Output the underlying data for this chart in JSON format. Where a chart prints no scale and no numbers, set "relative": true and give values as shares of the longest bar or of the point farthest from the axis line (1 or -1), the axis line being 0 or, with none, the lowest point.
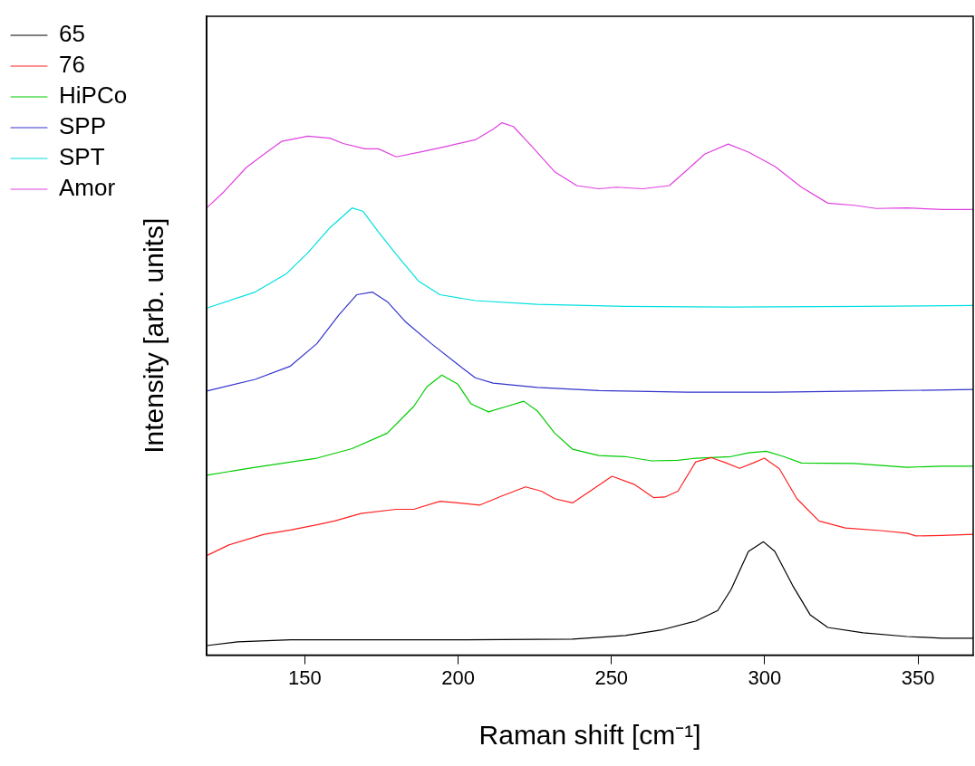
{
  "chart_data": {
    "type": "line",
    "xlabel": "Raman shift [cm⁻¹]",
    "ylabel": "Intensity [arb. units]",
    "relative": true,
    "xlim": [
      118,
      368
    ],
    "xticks": [
      150,
      200,
      250,
      300,
      350
    ],
    "grid": false,
    "legend": "top left",
    "marker": "none",
    "line_style": "solid",
    "series": [
      {
        "name": "65",
        "color": "#000000",
        "x": [
          118,
          128.1,
          145.3,
          202.8,
          237.3,
          254.5,
          266,
          277.5,
          284.7,
          289,
          294.7,
          299.6,
          303.3,
          309.1,
          314.8,
          320.6,
          332.1,
          346.4,
          357.9,
          368
        ],
        "values": [
          0.018,
          0.025,
          0.029,
          0.029,
          0.03,
          0.037,
          0.047,
          0.064,
          0.084,
          0.123,
          0.195,
          0.213,
          0.195,
          0.131,
          0.076,
          0.052,
          0.042,
          0.035,
          0.032,
          0.032
        ]
      },
      {
        "name": "76",
        "color": "#ff2020",
        "x": [
          118,
          125.2,
          136.7,
          145.3,
          153.9,
          159.7,
          168.3,
          179.8,
          185.5,
          194.1,
          199.9,
          207.1,
          214.3,
          222,
          227.2,
          231.5,
          237.3,
          243,
          250.2,
          257.4,
          263.7,
          267.4,
          271.7,
          277.5,
          282.6,
          287.5,
          291.8,
          296.2,
          299.9,
          304.8,
          310.5,
          317.7,
          326.3,
          337.8,
          346.4,
          349.3,
          357.9,
          368
        ],
        "values": [
          0.187,
          0.207,
          0.227,
          0.235,
          0.245,
          0.252,
          0.266,
          0.274,
          0.274,
          0.289,
          0.286,
          0.282,
          0.299,
          0.316,
          0.308,
          0.294,
          0.286,
          0.308,
          0.336,
          0.321,
          0.296,
          0.297,
          0.308,
          0.363,
          0.371,
          0.361,
          0.351,
          0.361,
          0.37,
          0.35,
          0.294,
          0.252,
          0.239,
          0.234,
          0.229,
          0.224,
          0.225,
          0.227
        ]
      },
      {
        "name": "HiPCo",
        "color": "#00cc00",
        "x": [
          118,
          133.8,
          153.9,
          165.4,
          176.9,
          185.5,
          189.8,
          194.7,
          199.9,
          204.2,
          209.9,
          215.7,
          221.4,
          225.8,
          231.5,
          237.3,
          245.9,
          254.5,
          263.1,
          271.7,
          277.5,
          289,
          294.7,
          300.5,
          306.2,
          312,
          329.2,
          346.4,
          357.9,
          368
        ],
        "values": [
          0.338,
          0.353,
          0.37,
          0.388,
          0.417,
          0.467,
          0.504,
          0.526,
          0.509,
          0.472,
          0.457,
          0.467,
          0.477,
          0.459,
          0.417,
          0.387,
          0.375,
          0.373,
          0.365,
          0.366,
          0.37,
          0.373,
          0.38,
          0.383,
          0.373,
          0.361,
          0.36,
          0.353,
          0.355,
          0.355
        ]
      },
      {
        "name": "SPP",
        "color": "#3333cc",
        "x": [
          118,
          133.8,
          145.3,
          153.9,
          161.1,
          166.9,
          172,
          176.9,
          182.7,
          191.3,
          199.9,
          205.6,
          211.4,
          225.8,
          245.9,
          274.6,
          303.3,
          332.1,
          368
        ],
        "values": [
          0.496,
          0.518,
          0.543,
          0.585,
          0.639,
          0.677,
          0.682,
          0.664,
          0.627,
          0.585,
          0.546,
          0.521,
          0.511,
          0.503,
          0.497,
          0.494,
          0.494,
          0.496,
          0.499
        ]
      },
      {
        "name": "SPT",
        "color": "#00e0e0",
        "x": [
          118,
          133.8,
          143.9,
          151,
          158.2,
          165.4,
          168.9,
          174,
          179.8,
          187,
          194.1,
          205.6,
          225.8,
          254.5,
          289,
          332.1,
          368
        ],
        "values": [
          0.652,
          0.682,
          0.716,
          0.756,
          0.803,
          0.84,
          0.834,
          0.795,
          0.753,
          0.703,
          0.677,
          0.666,
          0.659,
          0.655,
          0.654,
          0.655,
          0.657
        ]
      },
      {
        "name": "Amor",
        "color": "#e040e0",
        "x": [
          118,
          123.7,
          130.9,
          136.7,
          142.4,
          151,
          158.2,
          162.5,
          169.7,
          174,
          179.8,
          188.4,
          195.6,
          205.6,
          211.4,
          214.3,
          218,
          222.9,
          231.5,
          238.7,
          245.9,
          251.6,
          260.2,
          268.9,
          274.6,
          280.4,
          288.1,
          294.7,
          303.3,
          312,
          320.6,
          329.2,
          336.4,
          346.4,
          357.9,
          368
        ],
        "values": [
          0.84,
          0.871,
          0.916,
          0.941,
          0.965,
          0.975,
          0.971,
          0.961,
          0.951,
          0.951,
          0.936,
          0.946,
          0.955,
          0.968,
          0.988,
          1,
          0.993,
          0.963,
          0.908,
          0.882,
          0.876,
          0.879,
          0.876,
          0.882,
          0.911,
          0.941,
          0.96,
          0.945,
          0.918,
          0.879,
          0.849,
          0.845,
          0.839,
          0.84,
          0.837,
          0.837
        ]
      }
    ]
  }
}
